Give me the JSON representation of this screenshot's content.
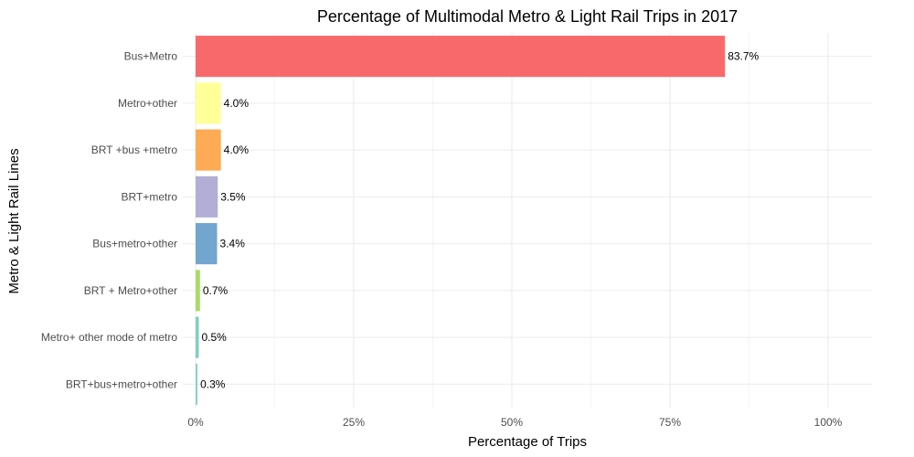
{
  "chart_data": {
    "type": "bar",
    "orientation": "horizontal",
    "title": "Percentage of  Multimodal Metro & Light Rail Trips in 2017",
    "xlabel": "Percentage of Trips",
    "ylabel": "Metro & Light Rail Lines",
    "xlim": [
      0,
      1.07
    ],
    "x_ticks": [
      0,
      0.25,
      0.5,
      0.75,
      1.0
    ],
    "x_tick_labels": [
      "0%",
      "25%",
      "50%",
      "75%",
      "100%"
    ],
    "grid": true,
    "legend": "none",
    "categories": [
      "Bus+Metro",
      "Metro+other",
      "BRT +bus +metro",
      "BRT+metro",
      "Bus+metro+other",
      "BRT + Metro+other",
      "Metro+ other mode of metro",
      "BRT+bus+metro+other"
    ],
    "values": [
      0.837,
      0.04,
      0.04,
      0.035,
      0.034,
      0.007,
      0.005,
      0.003
    ],
    "data_labels": [
      "83.7%",
      "4.0%",
      "4.0%",
      "3.5%",
      "3.4%",
      "0.7%",
      "0.5%",
      "0.3%"
    ],
    "colors": [
      "#f8696b",
      "#ffff99",
      "#fdab54",
      "#b3aed5",
      "#73a6cf",
      "#a9db6a",
      "#80cfbf",
      "#8dd3c7"
    ]
  }
}
